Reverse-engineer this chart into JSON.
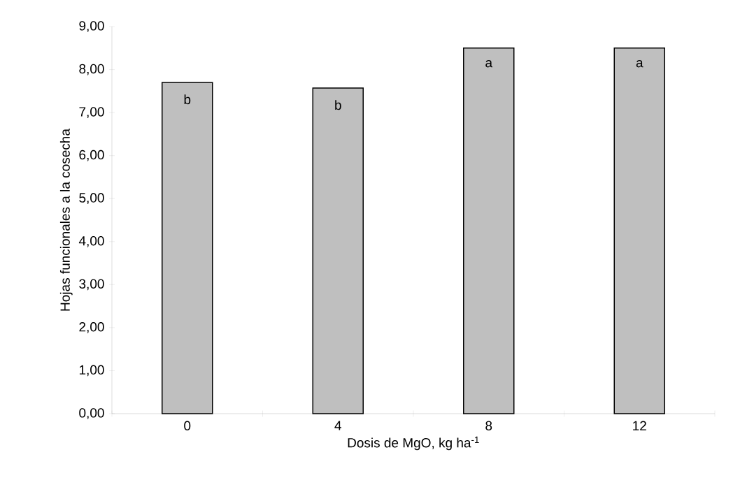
{
  "chart_data": {
    "type": "bar",
    "xlabel": "Dosis de MgO, kg ha$^{-1}$",
    "ylabel": "Hojas funcionales a la cosecha",
    "categories": [
      "0",
      "4",
      "8",
      "12"
    ],
    "values": [
      7.7,
      7.57,
      8.5,
      8.5
    ],
    "color": "#bfbfbf",
    "ylim": [
      0,
      9
    ],
    "yticks": [
      {
        "value": 0,
        "label": "0,00"
      },
      {
        "value": 1,
        "label": "1,00"
      },
      {
        "value": 2,
        "label": "2,00"
      },
      {
        "value": 3,
        "label": "3,00"
      },
      {
        "value": 4,
        "label": "4,00"
      },
      {
        "value": 5,
        "label": "5,00"
      },
      {
        "value": 6,
        "label": "6,00"
      },
      {
        "value": 7,
        "label": "7,00"
      },
      {
        "value": 8,
        "label": "8,00"
      },
      {
        "value": 9,
        "label": "9,00"
      }
    ],
    "grid": false,
    "annotations": [
      {
        "text": "b",
        "x": "0",
        "y": 7.7
      },
      {
        "text": "b",
        "x": "4",
        "y": 7.57
      },
      {
        "text": "a",
        "x": "8",
        "y": 8.5
      },
      {
        "text": "a",
        "x": "12",
        "y": 8.5
      }
    ]
  }
}
